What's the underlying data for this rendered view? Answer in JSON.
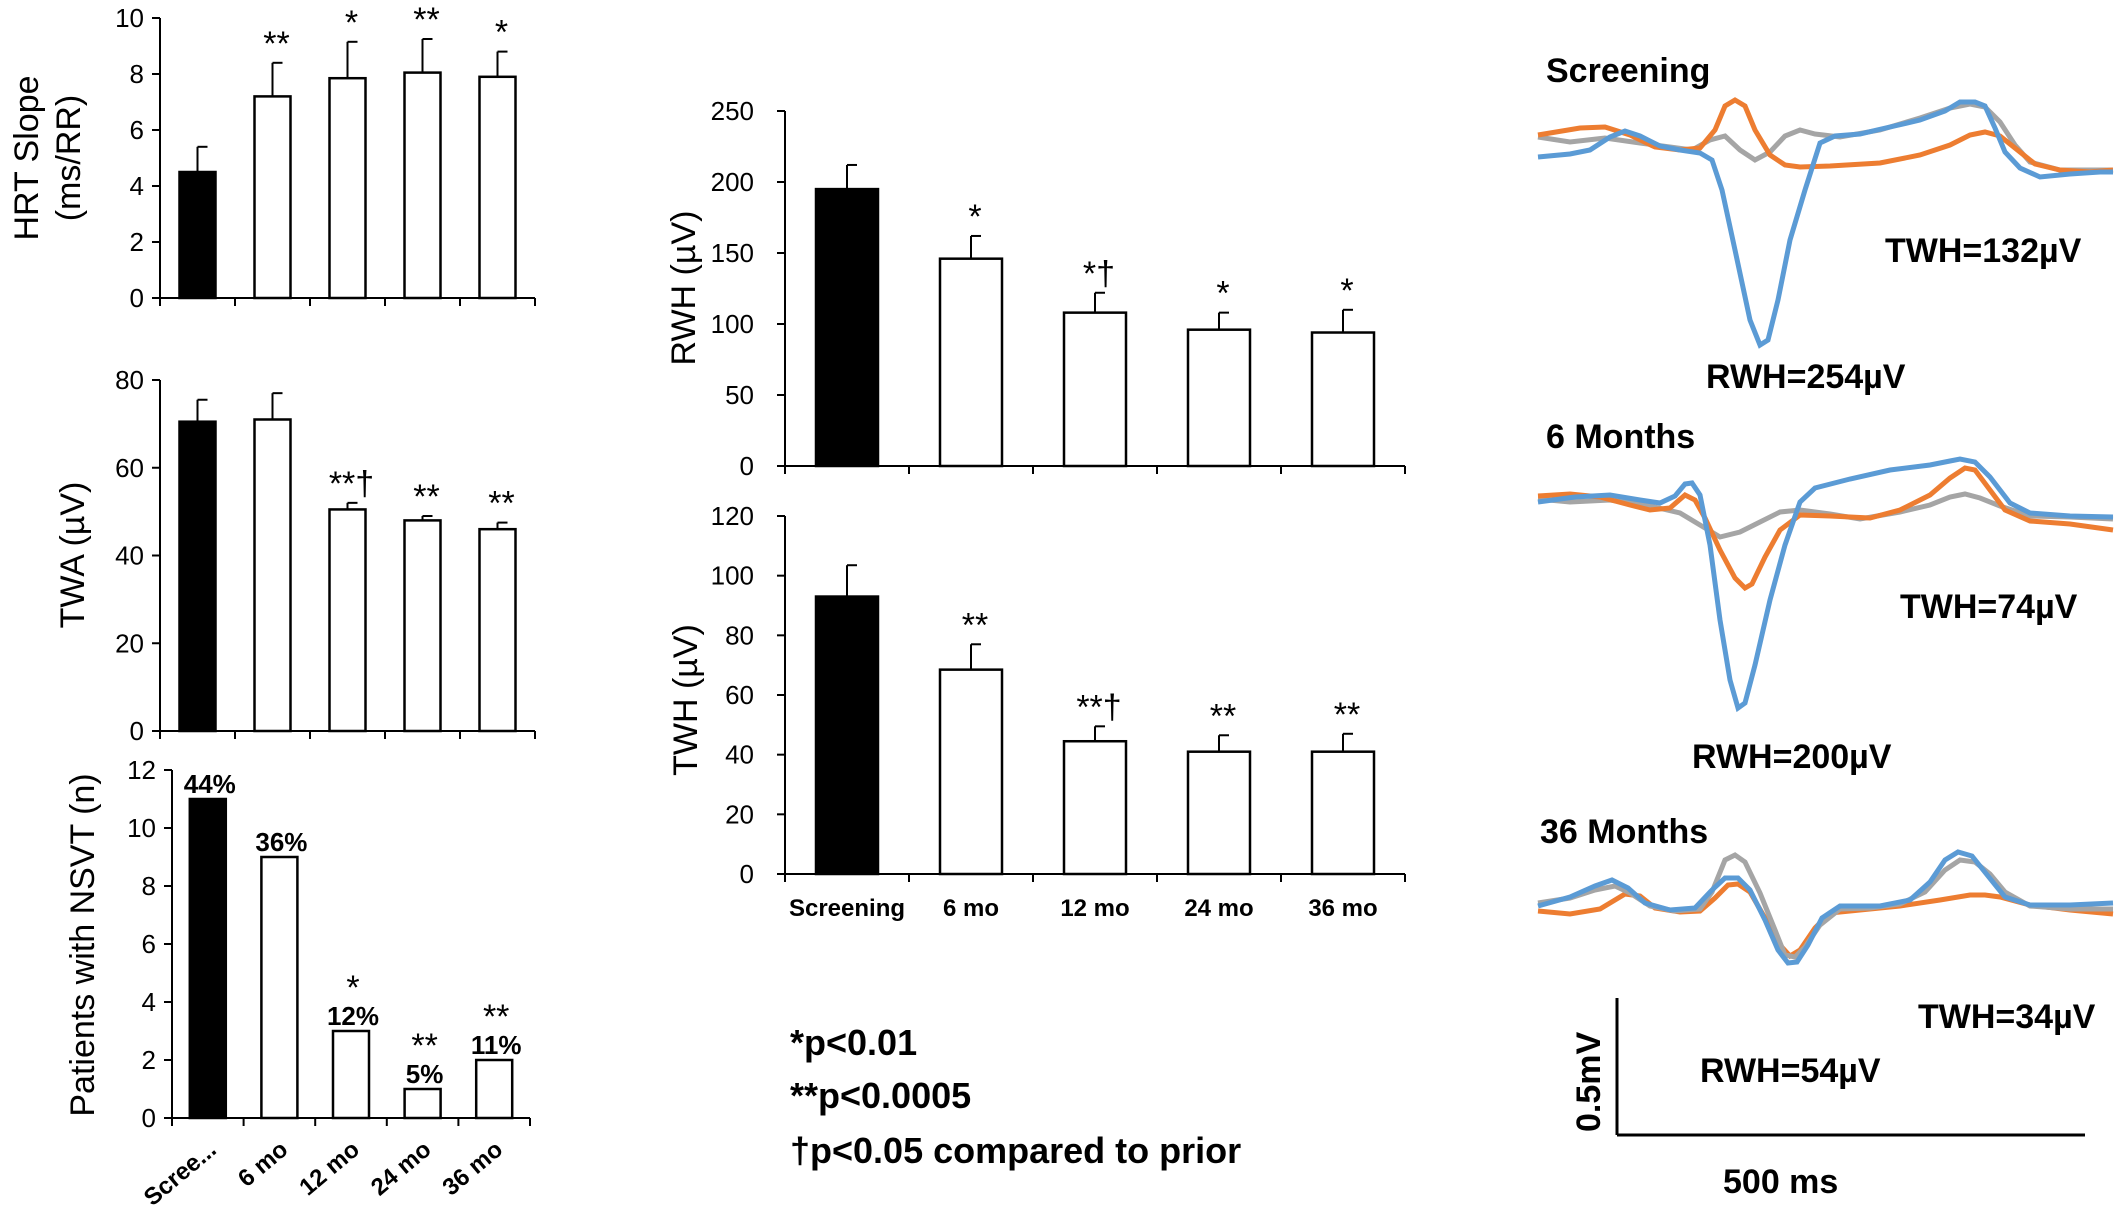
{
  "chart_data": [
    {
      "id": "hrt",
      "type": "bar",
      "ylabel": [
        "HRT Slope",
        "(ms/RR)"
      ],
      "ylim": [
        0,
        10
      ],
      "yticks": [
        0,
        2,
        4,
        6,
        8,
        10
      ],
      "categories": [
        "Screening",
        "6 mo",
        "12 mo",
        "24 mo",
        "36 mo"
      ],
      "values": [
        4.5,
        7.2,
        7.85,
        8.05,
        7.9
      ],
      "errors": [
        0.9,
        1.2,
        1.3,
        1.2,
        0.9
      ],
      "filled": [
        true,
        false,
        false,
        false,
        false
      ],
      "labels": [
        "",
        "**",
        "*",
        "**",
        "*"
      ]
    },
    {
      "id": "twa",
      "type": "bar",
      "ylabel": [
        "TWA (µV)"
      ],
      "ylim": [
        0,
        80
      ],
      "yticks": [
        0,
        20,
        40,
        60,
        80
      ],
      "categories": [
        "Screening",
        "6 mo",
        "12 mo",
        "24 mo",
        "36 mo"
      ],
      "values": [
        70.5,
        71,
        50.5,
        48,
        46
      ],
      "errors": [
        5,
        6,
        1.5,
        1,
        1.5
      ],
      "filled": [
        true,
        false,
        false,
        false,
        false
      ],
      "labels": [
        "",
        "",
        "**†",
        "**",
        "**"
      ]
    },
    {
      "id": "nsvt",
      "type": "bar",
      "ylabel": [
        "Patients with NSVT (n)"
      ],
      "ylim": [
        0,
        12
      ],
      "yticks": [
        0,
        2,
        4,
        6,
        8,
        10,
        12
      ],
      "categories": [
        "Scree...",
        "6 mo",
        "12 mo",
        "24 mo",
        "36 mo"
      ],
      "values": [
        11,
        9,
        3,
        1,
        2
      ],
      "filled": [
        true,
        false,
        false,
        false,
        false
      ],
      "labels": [
        "",
        "",
        "*",
        "**",
        "**"
      ],
      "pct_labels": [
        "44%",
        "36%",
        "12%",
        "5%",
        "11%"
      ]
    },
    {
      "id": "rwh",
      "type": "bar",
      "ylabel": [
        "RWH (µV)"
      ],
      "ylim": [
        0,
        250
      ],
      "yticks": [
        0,
        50,
        100,
        150,
        200,
        250
      ],
      "categories": [
        "Screening",
        "6 mo",
        "12 mo",
        "24 mo",
        "36 mo"
      ],
      "values": [
        195,
        146,
        108,
        96,
        94
      ],
      "errors": [
        17,
        16,
        14,
        12,
        16
      ],
      "filled": [
        true,
        false,
        false,
        false,
        false
      ],
      "labels": [
        "",
        "*",
        "*†",
        "*",
        "*"
      ]
    },
    {
      "id": "twh",
      "type": "bar",
      "ylabel": [
        "TWH (µV)"
      ],
      "ylim": [
        0,
        120
      ],
      "yticks": [
        0,
        20,
        40,
        60,
        80,
        100,
        120
      ],
      "categories": [
        "Screening",
        "6 mo",
        "12 mo",
        "24 mo",
        "36 mo"
      ],
      "values": [
        93,
        68.5,
        44.5,
        41,
        41
      ],
      "errors": [
        10.5,
        8.5,
        5,
        5.5,
        6
      ],
      "filled": [
        true,
        false,
        false,
        false,
        false
      ],
      "labels": [
        "",
        "**",
        "**†",
        "**",
        "**"
      ]
    }
  ],
  "legend": [
    "*p<0.01",
    "**p<0.0005",
    "†p<0.05 compared to prior"
  ],
  "ecg_panels": [
    {
      "title": "Screening",
      "twh_label": "TWH=132µV",
      "rwh_label": "RWH=254µV"
    },
    {
      "title": "6 Months",
      "twh_label": "TWH=74µV",
      "rwh_label": "RWH=200µV"
    },
    {
      "title": "36 Months",
      "twh_label": "TWH=34µV",
      "rwh_label": "RWH=54µV"
    }
  ],
  "scale_bar": {
    "vertical": "0.5mV",
    "horizontal": "500 ms"
  },
  "colors": {
    "filled_bar": "#000000",
    "trace_blue": "#5b9bd5",
    "trace_orange": "#ed7d31",
    "trace_gray": "#a5a5a5"
  }
}
